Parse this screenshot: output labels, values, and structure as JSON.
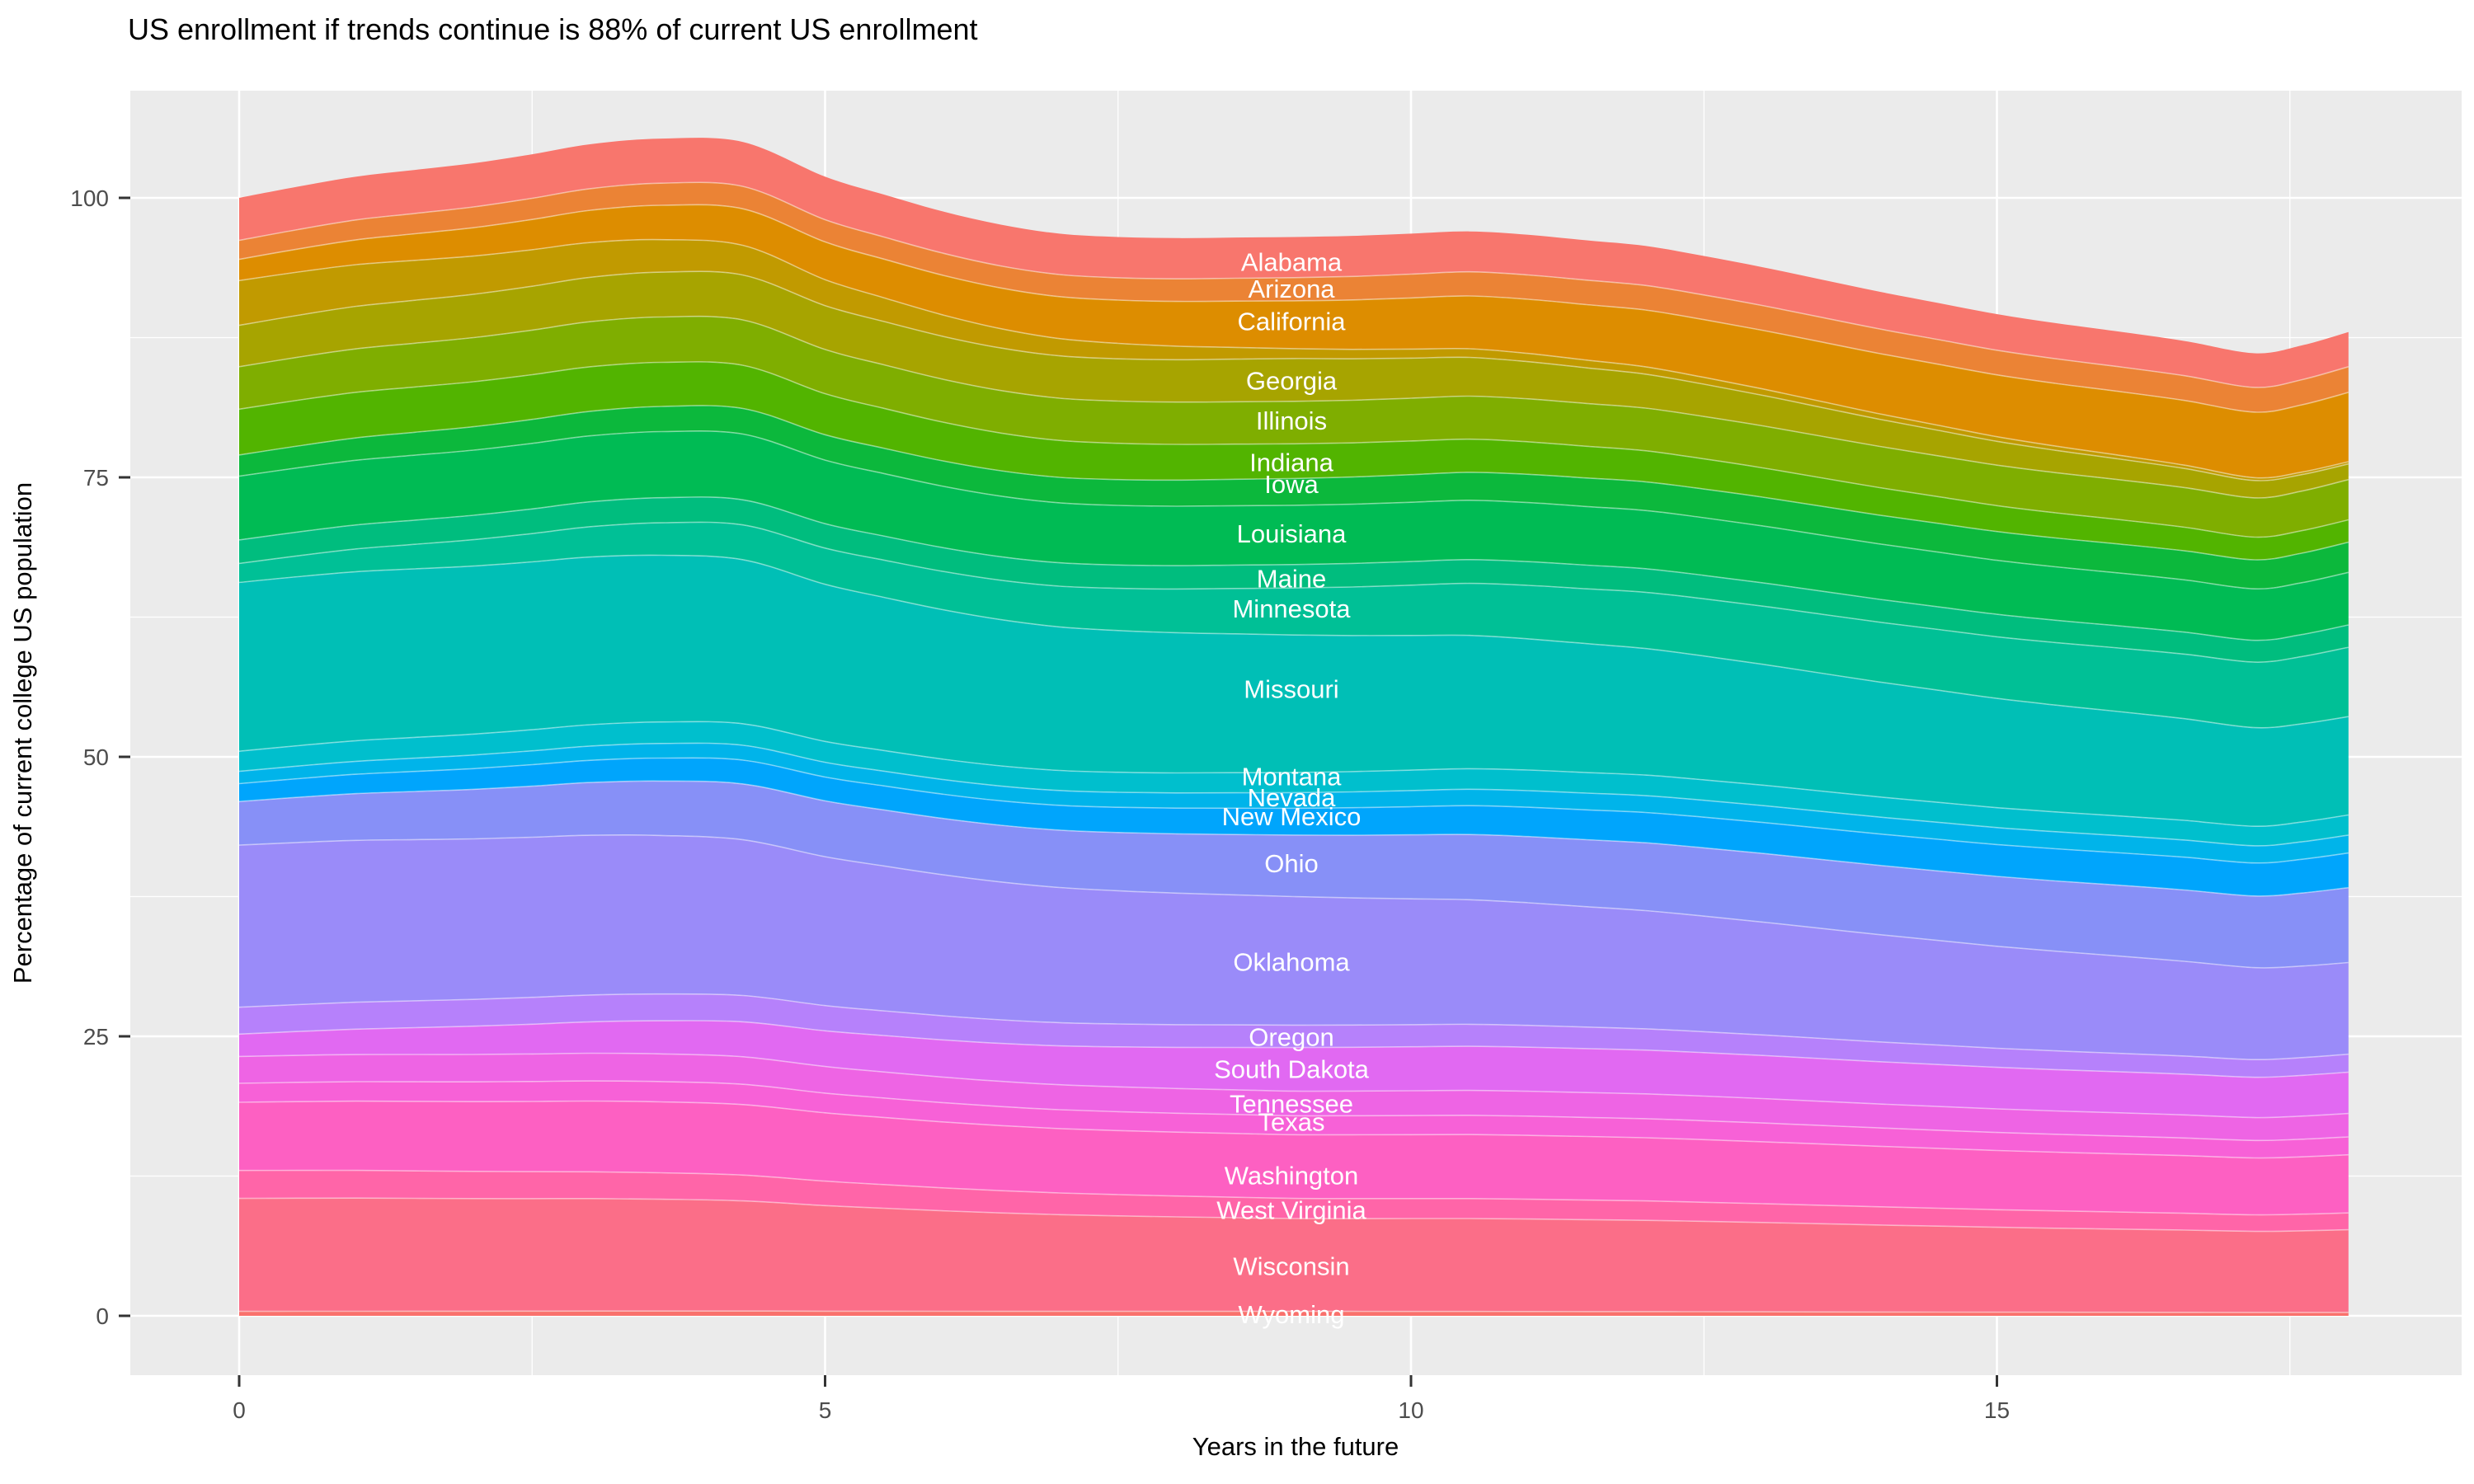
{
  "title": "US enrollment if trends continue is 88% of current US enrollment",
  "panel": {
    "bg": "#ebebeb",
    "grid_color": "#ffffff",
    "tick_color": "#333333",
    "tick_label_color": "#4d4d4d",
    "state_label_color": "#ffffff"
  },
  "chart_data": {
    "type": "area",
    "stacked": true,
    "title": "US enrollment if trends continue is 88% of current US enrollment",
    "xlabel": "Years in the future",
    "ylabel": "Percentage of current college US population",
    "legend": "none (bands labeled in-plot)",
    "grid": "on",
    "x_ticks": [
      0,
      5,
      10,
      15
    ],
    "y_ticks": [
      0,
      25,
      50,
      75,
      100
    ],
    "x_minor": [
      2.5,
      7.5,
      12.5,
      17.5
    ],
    "y_minor": [
      12.5,
      37.5,
      62.5,
      87.5
    ],
    "xlim": [
      -0.93,
      18.93
    ],
    "ylim": [
      -5.3,
      109.6
    ],
    "x_range": [
      0,
      18
    ],
    "x": [
      0,
      0.5,
      1,
      1.5,
      2,
      2.5,
      3,
      3.6,
      4.3,
      5,
      5.5,
      6,
      6.5,
      7,
      7.5,
      8,
      8.5,
      9,
      9.5,
      10,
      10.5,
      11,
      11.5,
      12,
      12.5,
      13,
      13.5,
      14,
      14.5,
      15,
      15.5,
      16,
      16.6,
      17.2,
      17.6,
      18
    ],
    "total": [
      100.0,
      101.0,
      101.9,
      102.5,
      103.1,
      103.9,
      104.8,
      105.3,
      105.0,
      101.9,
      100.3,
      98.8,
      97.6,
      96.8,
      96.5,
      96.4,
      96.45,
      96.5,
      96.6,
      96.8,
      97.0,
      96.7,
      96.2,
      95.7,
      94.8,
      93.8,
      92.7,
      91.6,
      90.6,
      89.6,
      88.8,
      88.1,
      87.2,
      86.1,
      86.8,
      88.0
    ],
    "anchors": {
      "years": [
        0,
        9,
        18
      ],
      "totals": [
        100,
        96.5,
        88
      ]
    },
    "bands": [
      {
        "name": "Alabama",
        "label": "Alabama",
        "label_value": 94.2,
        "color": "#f8766d",
        "cum_bottom": [
          96.2,
          92.86,
          84.9
        ]
      },
      {
        "name": "Arizona",
        "label": "Arizona",
        "label_value": 91.8,
        "color": "#eb8335",
        "cum_bottom": [
          94.5,
          90.79,
          82.6
        ]
      },
      {
        "name": "California",
        "label": "California",
        "label_value": 88.9,
        "color": "#dd8d00",
        "cum_bottom": [
          92.6,
          86.51,
          76.4
        ]
      },
      {
        "name": "unlabeled-a",
        "label": null,
        "label_value": null,
        "color": "#c19a00",
        "cum_bottom": [
          88.6,
          85.63,
          76.2
        ]
      },
      {
        "name": "Georgia",
        "label": "Georgia",
        "label_value": 83.6,
        "color": "#a7a400",
        "cum_bottom": [
          84.9,
          81.8,
          74.8
        ]
      },
      {
        "name": "Illinois",
        "label": "Illinois",
        "label_value": 80.0,
        "color": "#7fae00",
        "cum_bottom": [
          81.1,
          78.0,
          71.2
        ]
      },
      {
        "name": "Indiana",
        "label": "Indiana",
        "label_value": 76.3,
        "color": "#52b400",
        "cum_bottom": [
          77.0,
          74.9,
          69.2
        ]
      },
      {
        "name": "Iowa",
        "label": "Iowa",
        "label_value": 74.35,
        "color": "#0cb83c",
        "cum_bottom": [
          75.1,
          72.5,
          66.5
        ]
      },
      {
        "name": "Louisiana",
        "label": "Louisiana",
        "label_value": 69.9,
        "color": "#00bb54",
        "cum_bottom": [
          69.4,
          67.2,
          61.8
        ]
      },
      {
        "name": "Maine",
        "label": "Maine",
        "label_value": 65.9,
        "color": "#00bd7e",
        "cum_bottom": [
          67.3,
          65.1,
          59.8
        ]
      },
      {
        "name": "Minnesota",
        "label": "Minnesota",
        "label_value": 63.2,
        "color": "#00c096",
        "cum_bottom": [
          65.6,
          60.9,
          53.6
        ]
      },
      {
        "name": "Missouri",
        "label": "Missouri",
        "label_value": 56.0,
        "color": "#00bfb6",
        "cum_bottom": [
          50.5,
          48.6,
          44.8
        ]
      },
      {
        "name": "Montana",
        "label": "Montana",
        "label_value": 48.2,
        "color": "#00bfcd",
        "cum_bottom": [
          48.7,
          46.8,
          43.0
        ]
      },
      {
        "name": "Nevada",
        "label": "Nevada",
        "label_value": 46.3,
        "color": "#00b4ea",
        "cum_bottom": [
          47.6,
          45.4,
          41.4
        ]
      },
      {
        "name": "New Mexico",
        "label": "New Mexico",
        "label_value": 44.6,
        "color": "#00a5fc",
        "cum_bottom": [
          46.0,
          43.0,
          38.3
        ]
      },
      {
        "name": "Ohio",
        "label": "Ohio",
        "label_value": 40.4,
        "color": "#8790f7",
        "cum_bottom": [
          42.1,
          37.5,
          31.6
        ]
      },
      {
        "name": "Oklahoma",
        "label": "Oklahoma",
        "label_value": 31.6,
        "color": "#9a8bf9",
        "cum_bottom": [
          27.6,
          26.0,
          23.4
        ]
      },
      {
        "name": "Oregon",
        "label": "Oregon",
        "label_value": 24.9,
        "color": "#b681fb",
        "cum_bottom": [
          25.2,
          24.0,
          21.8
        ]
      },
      {
        "name": "South Dakota",
        "label": "South Dakota",
        "label_value": 22.0,
        "color": "#e169f2",
        "cum_bottom": [
          23.2,
          20.1,
          18.1
        ]
      },
      {
        "name": "Tennessee",
        "label": "Tennessee",
        "label_value": 18.9,
        "color": "#ee64e4",
        "cum_bottom": [
          20.8,
          17.9,
          16.0
        ]
      },
      {
        "name": "Texas",
        "label": "Texas",
        "label_value": 17.3,
        "color": "#f761d7",
        "cum_bottom": [
          19.1,
          16.2,
          14.4
        ]
      },
      {
        "name": "Washington",
        "label": "Washington",
        "label_value": 12.5,
        "color": "#fd60c2",
        "cum_bottom": [
          13.0,
          10.5,
          9.2
        ]
      },
      {
        "name": "West Virginia",
        "label": "West Virginia",
        "label_value": 9.4,
        "color": "#ff65a8",
        "cum_bottom": [
          10.5,
          8.7,
          7.7
        ]
      },
      {
        "name": "Wisconsin",
        "label": "Wisconsin",
        "label_value": 4.4,
        "color": "#fb6e88",
        "cum_bottom": [
          0.4,
          0.4,
          0.3
        ]
      },
      {
        "name": "Wyoming",
        "label": "Wyoming",
        "label_value": 0.07,
        "color": "#f9716c",
        "cum_bottom": [
          0,
          0,
          0
        ]
      }
    ],
    "label_column_year": 9,
    "end_values": {
      "start_total_pct": 100,
      "end_total_pct": 88
    }
  }
}
